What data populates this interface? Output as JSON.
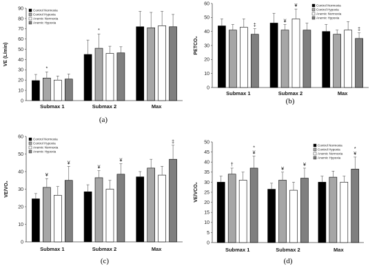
{
  "legend": [
    "Control Normoxia",
    "Control Hypoxia",
    "Anemic Normoxia",
    "Anemic Hypoxia"
  ],
  "colors": {
    "Control Normoxia": "#000000",
    "Control Hypoxia": "#a6a6a6",
    "Anemic Normoxia": "#ffffff",
    "Anemic Hypoxia": "#7f7f7f"
  },
  "chart_data": [
    {
      "type": "bar",
      "panel_label": "(a)",
      "ylabel": "VE (L/min)",
      "ylim": [
        0,
        90
      ],
      "yticks": [
        0,
        10,
        20,
        30,
        40,
        50,
        60,
        70,
        80,
        90
      ],
      "categories": [
        "Submax 1",
        "Submax 2",
        "Max"
      ],
      "legend_position": "top-left",
      "series": [
        {
          "name": "Control Normoxia",
          "values": [
            19.5,
            45,
            72
          ],
          "errors": [
            6,
            14,
            15
          ]
        },
        {
          "name": "Control Hypoxia",
          "values": [
            22,
            51,
            71
          ],
          "errors": [
            6,
            14,
            15
          ]
        },
        {
          "name": "Anemic Normoxia",
          "values": [
            20,
            46,
            73
          ],
          "errors": [
            4,
            7,
            14
          ]
        },
        {
          "name": "Anemic Hypoxia",
          "values": [
            21,
            46.5,
            72
          ],
          "errors": [
            5,
            6,
            12
          ]
        }
      ],
      "annotations": [
        {
          "category": "Submax 1",
          "series": "Control Hypoxia",
          "symbols": [
            "*"
          ]
        },
        {
          "category": "Submax 2",
          "series": "Control Hypoxia",
          "symbols": [
            "*"
          ]
        }
      ]
    },
    {
      "type": "bar",
      "panel_label": "(b)",
      "ylabel": "PETCO₂",
      "ylim": [
        0,
        60
      ],
      "yticks": [
        0,
        10,
        20,
        30,
        40,
        50,
        60
      ],
      "categories": [
        "Submax 1",
        "Submax 2",
        "Max"
      ],
      "legend_position": "top-right",
      "series": [
        {
          "name": "Control Normoxia",
          "values": [
            44,
            46,
            40
          ],
          "errors": [
            5,
            7,
            5
          ]
        },
        {
          "name": "Control Hypoxia",
          "values": [
            41,
            41,
            38
          ],
          "errors": [
            4,
            4,
            3
          ]
        },
        {
          "name": "Anemic Normoxia",
          "values": [
            43,
            49,
            41
          ],
          "errors": [
            6,
            7,
            6
          ]
        },
        {
          "name": "Anemic Hypoxia",
          "values": [
            38,
            41,
            35
          ],
          "errors": [
            4,
            5,
            4
          ]
        }
      ],
      "annotations": [
        {
          "category": "Submax 1",
          "series": "Anemic Hypoxia",
          "symbols": [
            "‡"
          ]
        },
        {
          "category": "Submax 2",
          "series": "Control Hypoxia",
          "symbols": [
            "¥"
          ]
        },
        {
          "category": "Submax 2",
          "series": "Anemic Normoxia",
          "symbols": [
            "¥"
          ]
        },
        {
          "category": "Max",
          "series": "Anemic Hypoxia",
          "symbols": [
            "‡"
          ]
        }
      ]
    },
    {
      "type": "bar",
      "panel_label": "(c)",
      "ylabel": "VE/VO₂",
      "ylim": [
        0,
        60
      ],
      "yticks": [
        0,
        10,
        20,
        30,
        40,
        50,
        60
      ],
      "categories": [
        "Submax 1",
        "Submax 2",
        "Max"
      ],
      "legend_position": "top-left",
      "series": [
        {
          "name": "Control Normoxia",
          "values": [
            24.5,
            28.5,
            37
          ],
          "errors": [
            3,
            4,
            3
          ]
        },
        {
          "name": "Control Hypoxia",
          "values": [
            31,
            36.5,
            42
          ],
          "errors": [
            5,
            4,
            5
          ]
        },
        {
          "name": "Anemic Normoxia",
          "values": [
            26.5,
            30,
            38
          ],
          "errors": [
            5,
            5,
            5
          ]
        },
        {
          "name": "Anemic Hypoxia",
          "values": [
            35,
            38.5,
            47
          ],
          "errors": [
            8,
            6,
            8
          ]
        }
      ],
      "annotations": [
        {
          "category": "Submax 1",
          "series": "Control Hypoxia",
          "symbols": [
            "¥"
          ]
        },
        {
          "category": "Submax 1",
          "series": "Anemic Hypoxia",
          "symbols": [
            "¥"
          ]
        },
        {
          "category": "Submax 2",
          "series": "Control Hypoxia",
          "symbols": [
            "¥"
          ]
        },
        {
          "category": "Submax 2",
          "series": "Anemic Hypoxia",
          "symbols": [
            "¥"
          ]
        },
        {
          "category": "Max",
          "series": "Anemic Hypoxia",
          "symbols": [
            "‡"
          ]
        }
      ]
    },
    {
      "type": "bar",
      "panel_label": "(d)",
      "ylabel": "VE/VCO₂",
      "ylim": [
        0,
        50
      ],
      "yticks": [
        0,
        5,
        10,
        15,
        20,
        25,
        30,
        35,
        40,
        45,
        50
      ],
      "categories": [
        "Submax 1",
        "Submax 2",
        "Max"
      ],
      "legend_position": "top-right",
      "series": [
        {
          "name": "Control Normoxia",
          "values": [
            30,
            26.5,
            30
          ],
          "errors": [
            3,
            3,
            3
          ]
        },
        {
          "name": "Control Hypoxia",
          "values": [
            34,
            31,
            32.5
          ],
          "errors": [
            3,
            4,
            3
          ]
        },
        {
          "name": "Anemic Normoxia",
          "values": [
            31,
            26,
            30
          ],
          "errors": [
            4,
            4,
            3
          ]
        },
        {
          "name": "Anemic Hypoxia",
          "values": [
            37,
            32,
            36.5
          ],
          "errors": [
            6,
            5,
            6
          ]
        }
      ],
      "annotations": [
        {
          "category": "Submax 1",
          "series": "Control Hypoxia",
          "symbols": [
            "†"
          ]
        },
        {
          "category": "Submax 1",
          "series": "Anemic Hypoxia",
          "symbols": [
            "*",
            "¥"
          ]
        },
        {
          "category": "Submax 2",
          "series": "Control Hypoxia",
          "symbols": [
            "¥"
          ]
        },
        {
          "category": "Submax 2",
          "series": "Anemic Hypoxia",
          "symbols": [
            "¥"
          ]
        },
        {
          "category": "Max",
          "series": "Anemic Hypoxia",
          "symbols": [
            "*",
            "¥"
          ]
        }
      ]
    }
  ]
}
